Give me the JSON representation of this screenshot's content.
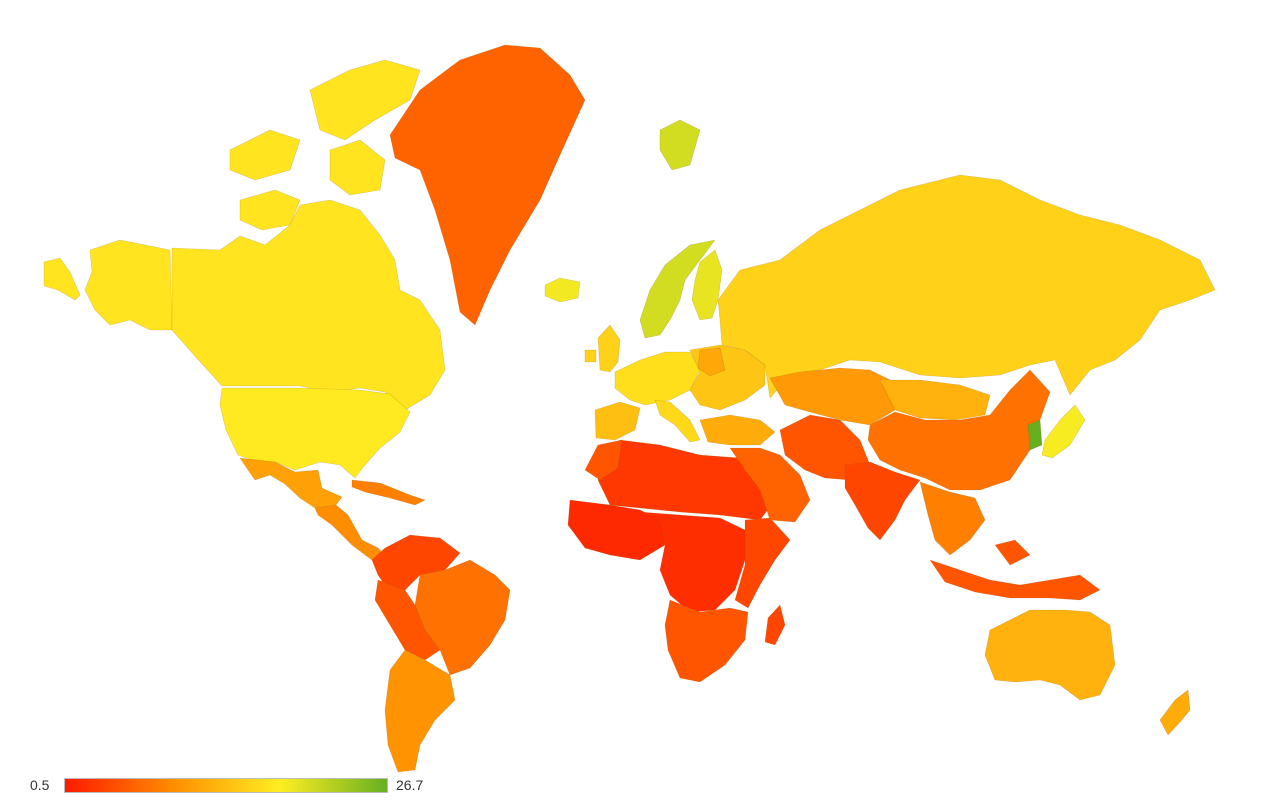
{
  "legend": {
    "min_label": "0.5",
    "max_label": "26.7",
    "min_value": 0.5,
    "max_value": 26.7,
    "gradient_colors": [
      "#ff1a00",
      "#ff8c00",
      "#ffee22",
      "#66b020"
    ]
  },
  "map_data": {
    "type": "choropleth",
    "regions": [
      {
        "name": "alaska",
        "value": 11.5
      },
      {
        "name": "canada",
        "value": 11.5
      },
      {
        "name": "usa",
        "value": 12.0
      },
      {
        "name": "mexico",
        "value": 6.0
      },
      {
        "name": "central-america",
        "value": 4.5
      },
      {
        "name": "caribbean",
        "value": 4.0
      },
      {
        "name": "greenland",
        "value": 3.0
      },
      {
        "name": "iceland",
        "value": 13.5
      },
      {
        "name": "colombia-venezuela",
        "value": 2.0
      },
      {
        "name": "brazil",
        "value": 3.5
      },
      {
        "name": "peru-bolivia",
        "value": 2.5
      },
      {
        "name": "argentina-chile",
        "value": 5.0
      },
      {
        "name": "scandinavia",
        "value": 16.5
      },
      {
        "name": "finland",
        "value": 14.5
      },
      {
        "name": "uk-ireland",
        "value": 10.0
      },
      {
        "name": "western-europe",
        "value": 11.0
      },
      {
        "name": "iberia",
        "value": 8.5
      },
      {
        "name": "italy",
        "value": 10.5
      },
      {
        "name": "eastern-europe",
        "value": 9.0
      },
      {
        "name": "belarus",
        "value": 6.5
      },
      {
        "name": "russia",
        "value": 10.0
      },
      {
        "name": "turkey",
        "value": 7.0
      },
      {
        "name": "north-africa",
        "value": 1.5
      },
      {
        "name": "morocco",
        "value": 2.5
      },
      {
        "name": "west-africa",
        "value": 1.0
      },
      {
        "name": "central-africa",
        "value": 1.2
      },
      {
        "name": "east-africa",
        "value": 2.0
      },
      {
        "name": "southern-africa",
        "value": 2.5
      },
      {
        "name": "madagascar",
        "value": 2.0
      },
      {
        "name": "middle-east",
        "value": 3.0
      },
      {
        "name": "iran-pakistan",
        "value": 2.5
      },
      {
        "name": "central-asia",
        "value": 5.5
      },
      {
        "name": "mongolia",
        "value": 7.5
      },
      {
        "name": "china",
        "value": 3.5
      },
      {
        "name": "india",
        "value": 2.0
      },
      {
        "name": "southeast-asia",
        "value": 4.0
      },
      {
        "name": "korea",
        "value": 26.7
      },
      {
        "name": "japan",
        "value": 13.0
      },
      {
        "name": "indonesia",
        "value": 2.5
      },
      {
        "name": "australia",
        "value": 7.5
      },
      {
        "name": "new-zealand",
        "value": 7.0
      }
    ]
  }
}
